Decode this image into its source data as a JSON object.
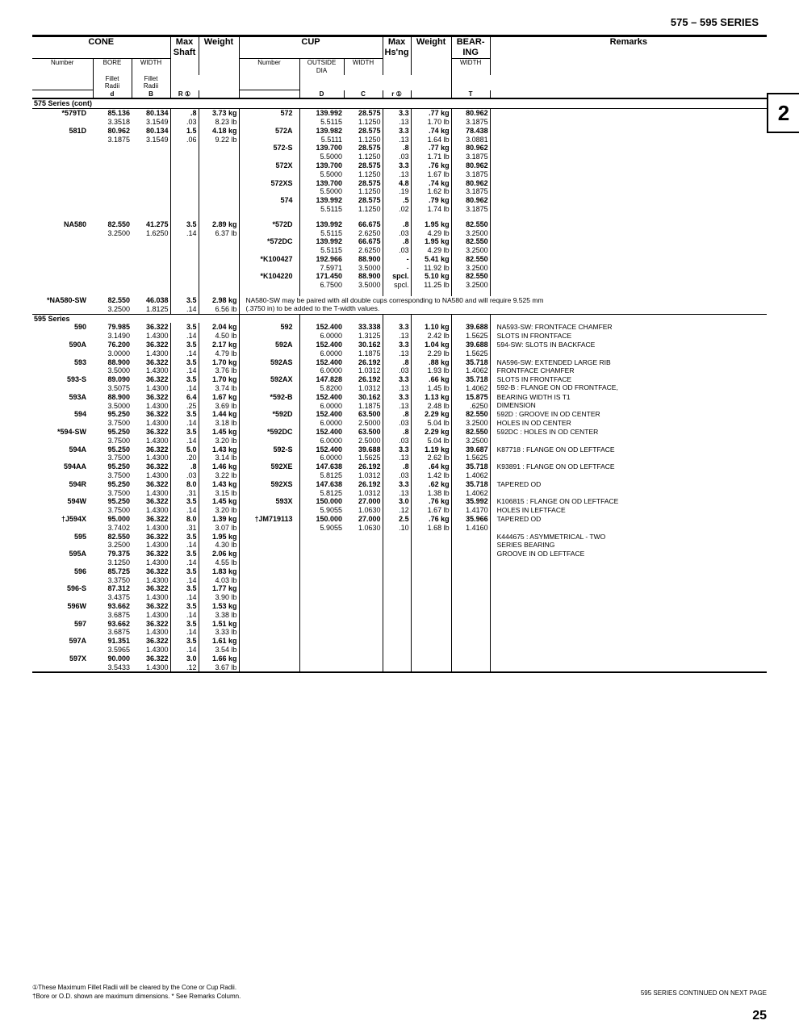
{
  "page": {
    "seriesHeader": "575 – 595 SERIES",
    "tabNumber": "2",
    "pageNumber": "25",
    "continuedText": "595 SERIES CONTINUED ON NEXT PAGE",
    "footnote1": "①These Maximum Fillet Radii will be cleared by the Cone or Cup Radii.",
    "footnote2": "†Bore or O.D. shown are maximum dimensions.   * See Remarks Column."
  },
  "headers": {
    "cone": "CONE",
    "cup": "CUP",
    "bearing": "BEAR-\nING",
    "remarks": "Remarks",
    "number": "Number",
    "bore": "BORE",
    "width": "WIDTH",
    "maxShaft": "Max\nShaft",
    "filletRadii": "Fillet\nRadii",
    "weight": "Weight",
    "outsideDia": "OUTSIDE\nDIA",
    "maxHsng": "Max\nHs'ng",
    "d": "d",
    "B": "B",
    "R": "R ①",
    "D": "D",
    "C": "C",
    "r": "r ①",
    "T": "T"
  },
  "sections": {
    "s575cont": "575 Series (cont)",
    "s595": "595 Series"
  },
  "rows575": [
    {
      "cone": "*579TD",
      "bore": "85.136\n3.3518",
      "bw": "80.134\n3.1549",
      "r": ".8\n.03",
      "wt": "3.73 kg\n8.23 lb",
      "cup": "572",
      "od": "139.992\n5.5115",
      "cw": "28.575\n1.1250",
      "cr": "3.3\n.13",
      "cwt": ".77 kg\n1.70 lb",
      "bt": "80.962\n3.1875"
    },
    {
      "cone": "581D",
      "bore": "80.962\n3.1875",
      "bw": "80.134\n3.1549",
      "r": "1.5\n.06",
      "wt": "4.18 kg\n9.22 lb",
      "cup": "572A",
      "od": "139.982\n5.5111",
      "cw": "28.575\n1.1250",
      "cr": "3.3\n.13",
      "cwt": ".74 kg\n1.64 lb",
      "bt": "78.438\n3.0881"
    },
    {
      "cone": "",
      "bore": "",
      "bw": "",
      "r": "",
      "wt": "",
      "cup": "572-S",
      "od": "139.700\n5.5000",
      "cw": "28.575\n1.1250",
      "cr": ".8\n.03",
      "cwt": ".77 kg\n1.71 lb",
      "bt": "80.962\n3.1875"
    },
    {
      "cone": "",
      "bore": "",
      "bw": "",
      "r": "",
      "wt": "",
      "cup": "572X",
      "od": "139.700\n5.5000",
      "cw": "28.575\n1.1250",
      "cr": "3.3\n.13",
      "cwt": ".76 kg\n1.67 lb",
      "bt": "80.962\n3.1875"
    },
    {
      "cone": "",
      "bore": "",
      "bw": "",
      "r": "",
      "wt": "",
      "cup": "572XS",
      "od": "139.700\n5.5000",
      "cw": "28.575\n1.1250",
      "cr": "4.8\n.19",
      "cwt": ".74 kg\n1.62 lb",
      "bt": "80.962\n3.1875"
    },
    {
      "cone": "",
      "bore": "",
      "bw": "",
      "r": "",
      "wt": "",
      "cup": "574",
      "od": "139.992\n5.5115",
      "cw": "28.575\n1.1250",
      "cr": ".5\n.02",
      "cwt": ".79 kg\n1.74 lb",
      "bt": "80.962\n3.1875"
    }
  ],
  "rowsNA580": [
    {
      "cone": "NA580",
      "bore": "82.550\n3.2500",
      "bw": "41.275\n1.6250",
      "r": "3.5\n.14",
      "wt": "2.89 kg\n6.37 lb",
      "cup": "*572D",
      "od": "139.992\n5.5115",
      "cw": "66.675\n2.6250",
      "cr": ".8\n.03",
      "cwt": "1.95 kg\n4.29 lb",
      "bt": "82.550\n3.2500"
    },
    {
      "cone": "",
      "bore": "",
      "bw": "",
      "r": "",
      "wt": "",
      "cup": "*572DC",
      "od": "139.992\n5.5115",
      "cw": "66.675\n2.6250",
      "cr": ".8\n.03",
      "cwt": "1.95 kg\n4.29 lb",
      "bt": "82.550\n3.2500"
    },
    {
      "cone": "",
      "bore": "",
      "bw": "",
      "r": "",
      "wt": "",
      "cup": "*K100427",
      "od": "192.966\n7.5971",
      "cw": "88.900\n3.5000",
      "cr": "-\n-",
      "cwt": "5.41 kg\n11.92 lb",
      "bt": "82.550\n3.2500"
    },
    {
      "cone": "",
      "bore": "",
      "bw": "",
      "r": "",
      "wt": "",
      "cup": "*K104220",
      "od": "171.450\n6.7500",
      "cw": "88.900\n3.5000",
      "cr": "spcl.\nspcl.",
      "cwt": "5.10 kg\n11.25 lb",
      "bt": "82.550\n3.2500"
    }
  ],
  "rowNA580SW": {
    "cone": "*NA580-SW",
    "bore": "82.550\n3.2500",
    "bw": "46.038\n1.8125",
    "r": "3.5\n.14",
    "wt": "2.98 kg\n6.56 lb",
    "note": "NA580-SW may be paired with all double cups corresponding to NA580 and will require 9.525 mm\n(.3750 in) to be added to the T-width values."
  },
  "rows595": [
    {
      "cone": "590",
      "bore": "79.985\n3.1490",
      "bw": "36.322\n1.4300",
      "r": "3.5\n.14",
      "wt": "2.04 kg\n4.50 lb",
      "cup": "592",
      "od": "152.400\n6.0000",
      "cw": "33.338\n1.3125",
      "cr": "3.3\n.13",
      "cwt": "1.10 kg\n2.42 lb",
      "bt": "39.688\n1.5625",
      "rem": "NA593-SW: FRONTFACE CHAMFER\nSLOTS IN FRONTFACE"
    },
    {
      "cone": "590A",
      "bore": "76.200\n3.0000",
      "bw": "36.322\n1.4300",
      "r": "3.5\n.14",
      "wt": "2.17 kg\n4.79 lb",
      "cup": "592A",
      "od": "152.400\n6.0000",
      "cw": "30.162\n1.1875",
      "cr": "3.3\n.13",
      "cwt": "1.04 kg\n2.29 lb",
      "bt": "39.688\n1.5625",
      "rem": "594-SW:  SLOTS IN BACKFACE"
    },
    {
      "cone": "593",
      "bore": "88.900\n3.5000",
      "bw": "36.322\n1.4300",
      "r": "3.5\n.14",
      "wt": "1.70 kg\n3.76 lb",
      "cup": "592AS",
      "od": "152.400\n6.0000",
      "cw": "26.192\n1.0312",
      "cr": ".8\n.03",
      "cwt": ".88 kg\n1.93 lb",
      "bt": "35.718\n1.4062",
      "rem": "NA596-SW: EXTENDED LARGE RIB\nFRONTFACE CHAMFER"
    },
    {
      "cone": "593-S",
      "bore": "89.090\n3.5075",
      "bw": "36.322\n1.4300",
      "r": "3.5\n.14",
      "wt": "1.70 kg\n3.74 lb",
      "cup": "592AX",
      "od": "147.828\n5.8200",
      "cw": "26.192\n1.0312",
      "cr": "3.3\n.13",
      "cwt": ".66 kg\n1.45 lb",
      "bt": "35.718\n1.4062",
      "rem": "SLOTS IN FRONTFACE\n592-B : FLANGE ON OD FRONTFACE,"
    },
    {
      "cone": "593A",
      "bore": "88.900\n3.5000",
      "bw": "36.322\n1.4300",
      "r": "6.4\n.25",
      "wt": "1.67 kg\n3.69 lb",
      "cup": "*592-B",
      "od": "152.400\n6.0000",
      "cw": "30.162\n1.1875",
      "cr": "3.3\n.13",
      "cwt": "1.13 kg\n2.48 lb",
      "bt": "15.875\n.6250",
      "rem": "BEARING WIDTH IS T1\nDIMENSION"
    },
    {
      "cone": "594",
      "bore": "95.250\n3.7500",
      "bw": "36.322\n1.4300",
      "r": "3.5\n.14",
      "wt": "1.44 kg\n3.18 lb",
      "cup": "*592D",
      "od": "152.400\n6.0000",
      "cw": "63.500\n2.5000",
      "cr": ".8\n.03",
      "cwt": "2.29 kg\n5.04 lb",
      "bt": "82.550\n3.2500",
      "rem": "592D : GROOVE IN OD CENTER\nHOLES IN OD CENTER"
    },
    {
      "cone": "*594-SW",
      "bore": "95.250\n3.7500",
      "bw": "36.322\n1.4300",
      "r": "3.5\n.14",
      "wt": "1.45 kg\n3.20 lb",
      "cup": "*592DC",
      "od": "152.400\n6.0000",
      "cw": "63.500\n2.5000",
      "cr": ".8\n.03",
      "cwt": "2.29 kg\n5.04 lb",
      "bt": "82.550\n3.2500",
      "rem": "\n592DC : HOLES IN OD CENTER"
    },
    {
      "cone": "594A",
      "bore": "95.250\n3.7500",
      "bw": "36.322\n1.4300",
      "r": "5.0\n.20",
      "wt": "1.43 kg\n3.14 lb",
      "cup": "592-S",
      "od": "152.400\n6.0000",
      "cw": "39.688\n1.5625",
      "cr": "3.3\n.13",
      "cwt": "1.19 kg\n2.62 lb",
      "bt": "39.687\n1.5625",
      "rem": "\nK87718 : FLANGE ON OD LEFTFACE"
    },
    {
      "cone": "594AA",
      "bore": "95.250\n3.7500",
      "bw": "36.322\n1.4300",
      "r": ".8\n.03",
      "wt": "1.46 kg\n3.22 lb",
      "cup": "592XE",
      "od": "147.638\n5.8125",
      "cw": "26.192\n1.0312",
      "cr": ".8\n.03",
      "cwt": ".64 kg\n1.42 lb",
      "bt": "35.718\n1.4062",
      "rem": "\nK93891 : FLANGE ON OD LEFTFACE"
    },
    {
      "cone": "594R",
      "bore": "95.250\n3.7500",
      "bw": "36.322\n1.4300",
      "r": "8.0\n.31",
      "wt": "1.43 kg\n3.15 lb",
      "cup": "592XS",
      "od": "147.638\n5.8125",
      "cw": "26.192\n1.0312",
      "cr": "3.3\n.13",
      "cwt": ".62 kg\n1.38 lb",
      "bt": "35.718\n1.4062",
      "rem": "TAPERED OD"
    },
    {
      "cone": "594W",
      "bore": "95.250\n3.7500",
      "bw": "36.322\n1.4300",
      "r": "3.5\n.14",
      "wt": "1.45 kg\n3.20 lb",
      "cup": "593X",
      "od": "150.000\n5.9055",
      "cw": "27.000\n1.0630",
      "cr": "3.0\n.12",
      "cwt": ".76 kg\n1.67 lb",
      "bt": "35.992\n1.4170",
      "rem": "K106815 : FLANGE ON OD LEFTFACE\nHOLES IN LEFTFACE"
    },
    {
      "cone": "†J594X",
      "bore": "95.000\n3.7402",
      "bw": "36.322\n1.4300",
      "r": "8.0\n.31",
      "wt": "1.39 kg\n3.07 lb",
      "cup": "†JM719113",
      "od": "150.000\n5.9055",
      "cw": "27.000\n1.0630",
      "cr": "2.5\n.10",
      "cwt": ".76 kg\n1.68 lb",
      "bt": "35.966\n1.4160",
      "rem": "TAPERED OD"
    },
    {
      "cone": "595",
      "bore": "82.550\n3.2500",
      "bw": "36.322\n1.4300",
      "r": "3.5\n.14",
      "wt": "1.95 kg\n4.30 lb",
      "cup": "",
      "od": "",
      "cw": "",
      "cr": "",
      "cwt": "",
      "bt": "",
      "rem": "K444675 : ASYMMETRICAL - TWO\nSERIES BEARING"
    },
    {
      "cone": "595A",
      "bore": "79.375\n3.1250",
      "bw": "36.322\n1.4300",
      "r": "3.5\n.14",
      "wt": "2.06 kg\n4.55 lb",
      "cup": "",
      "od": "",
      "cw": "",
      "cr": "",
      "cwt": "",
      "bt": "",
      "rem": "GROOVE IN OD LEFTFACE"
    },
    {
      "cone": "596",
      "bore": "85.725\n3.3750",
      "bw": "36.322\n1.4300",
      "r": "3.5\n.14",
      "wt": "1.83 kg\n4.03 lb",
      "cup": "",
      "od": "",
      "cw": "",
      "cr": "",
      "cwt": "",
      "bt": "",
      "rem": ""
    },
    {
      "cone": "596-S",
      "bore": "87.312\n3.4375",
      "bw": "36.322\n1.4300",
      "r": "3.5\n.14",
      "wt": "1.77 kg\n3.90 lb",
      "cup": "",
      "od": "",
      "cw": "",
      "cr": "",
      "cwt": "",
      "bt": "",
      "rem": ""
    },
    {
      "cone": "596W",
      "bore": "93.662\n3.6875",
      "bw": "36.322\n1.4300",
      "r": "3.5\n.14",
      "wt": "1.53 kg\n3.38 lb",
      "cup": "",
      "od": "",
      "cw": "",
      "cr": "",
      "cwt": "",
      "bt": "",
      "rem": ""
    },
    {
      "cone": "597",
      "bore": "93.662\n3.6875",
      "bw": "36.322\n1.4300",
      "r": "3.5\n.14",
      "wt": "1.51 kg\n3.33 lb",
      "cup": "",
      "od": "",
      "cw": "",
      "cr": "",
      "cwt": "",
      "bt": "",
      "rem": ""
    },
    {
      "cone": "597A",
      "bore": "91.351\n3.5965",
      "bw": "36.322\n1.4300",
      "r": "3.5\n.14",
      "wt": "1.61 kg\n3.54 lb",
      "cup": "",
      "od": "",
      "cw": "",
      "cr": "",
      "cwt": "",
      "bt": "",
      "rem": ""
    },
    {
      "cone": "597X",
      "bore": "90.000\n3.5433",
      "bw": "36.322\n1.4300",
      "r": "3.0\n.12",
      "wt": "1.66 kg\n3.67 lb",
      "cup": "",
      "od": "",
      "cw": "",
      "cr": "",
      "cwt": "",
      "bt": "",
      "rem": ""
    }
  ]
}
